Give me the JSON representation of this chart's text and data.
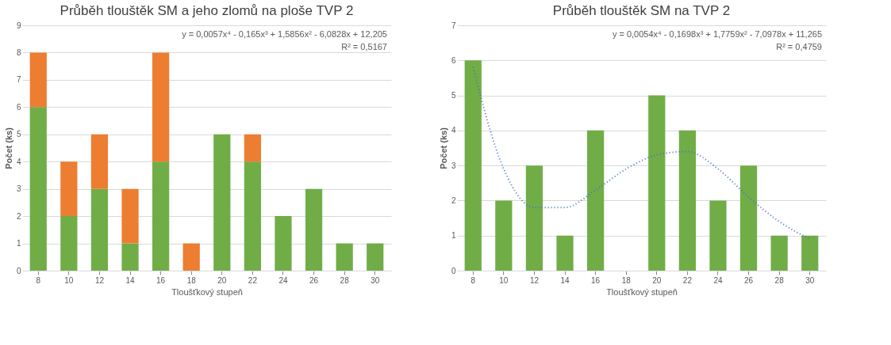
{
  "chart_data": [
    {
      "type": "bar",
      "title": "Průběh tlouštěk SM a jeho zlomů na ploše TVP 2",
      "xlabel": "Tloušťkový stupeň",
      "ylabel": "Počet (ks)",
      "categories": [
        "8",
        "10",
        "12",
        "14",
        "16",
        "18",
        "20",
        "22",
        "24",
        "26",
        "28",
        "30"
      ],
      "stacked": true,
      "series": [
        {
          "color": "#70ad47",
          "values": [
            6,
            2,
            3,
            1,
            4,
            0,
            5,
            4,
            2,
            3,
            1,
            1
          ]
        },
        {
          "color": "#ed7d31",
          "values": [
            2,
            2,
            2,
            2,
            4,
            1,
            0,
            1,
            0,
            0,
            0,
            0
          ]
        }
      ],
      "ylim": [
        0,
        9
      ],
      "yticks": [
        0,
        1,
        2,
        3,
        4,
        5,
        6,
        7,
        8,
        9
      ],
      "grid": "y",
      "annotations": [
        "y = 0,0057x⁴ - 0,165x³ + 1,5856x² - 6,0828x + 12,205",
        "R² = 0,5167"
      ]
    },
    {
      "type": "bar",
      "title": "Průběh tlouštěk SM na TVP 2",
      "xlabel": "Tloušťkový stupeň",
      "ylabel": "Počet (ks)",
      "categories": [
        "8",
        "10",
        "12",
        "14",
        "16",
        "18",
        "20",
        "22",
        "24",
        "26",
        "28",
        "30"
      ],
      "series": [
        {
          "color": "#70ad47",
          "values": [
            6,
            2,
            3,
            1,
            4,
            0,
            5,
            4,
            2,
            3,
            1,
            1
          ]
        },
        {
          "type": "line",
          "color": "#4472c4",
          "line_style": "dotted",
          "values": [
            5.8,
            2.9,
            1.8,
            1.8,
            2.3,
            2.9,
            3.3,
            3.4,
            2.9,
            2.1,
            1.4,
            0.9
          ]
        }
      ],
      "ylim": [
        0,
        7
      ],
      "yticks": [
        0,
        1,
        2,
        3,
        4,
        5,
        6,
        7
      ],
      "grid": "y",
      "annotations": [
        "y = 0,0054x⁴ - 0,1698x³ + 1,7759x² - 7,0978x + 11,265",
        "R² = 0,4759"
      ]
    }
  ]
}
